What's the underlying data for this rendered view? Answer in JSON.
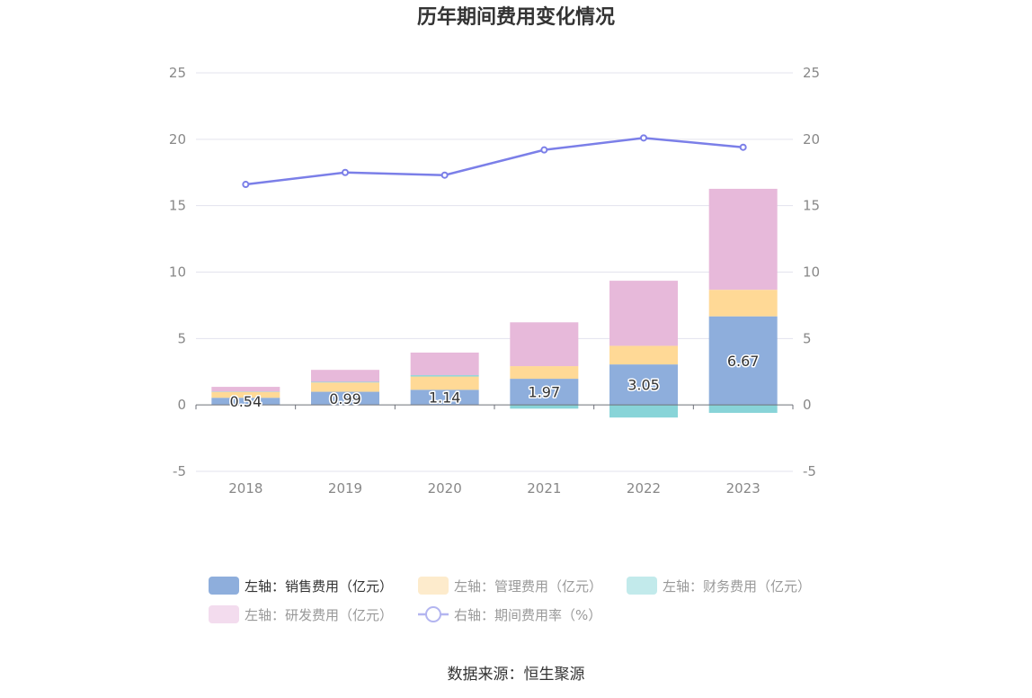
{
  "chart_data": {
    "type": "bar",
    "title": "历年期间费用变化情况",
    "categories": [
      "2018",
      "2019",
      "2020",
      "2021",
      "2022",
      "2023"
    ],
    "left_axis": {
      "ylim": [
        -5,
        25
      ],
      "ticks": [
        "25",
        "20",
        "15",
        "10",
        "5",
        "0",
        "-5"
      ]
    },
    "right_axis": {
      "ylim": [
        -5,
        25
      ],
      "ticks": [
        "25",
        "20",
        "15",
        "10",
        "5",
        "0",
        "-5"
      ]
    },
    "series": [
      {
        "name": "左轴：销售费用（亿元）",
        "type": "stacked-bar",
        "axis": "left",
        "color": "#8eaedc",
        "values": [
          0.54,
          0.99,
          1.14,
          1.97,
          3.05,
          6.67
        ],
        "labels": [
          "0.54",
          "0.99",
          "1.14",
          "1.97",
          "3.05",
          "6.67"
        ]
      },
      {
        "name": "左轴：管理费用（亿元）",
        "type": "stacked-bar",
        "axis": "left",
        "color": "#ffd996",
        "values": [
          0.45,
          0.7,
          1.0,
          0.95,
          1.4,
          2.0
        ]
      },
      {
        "name": "左轴：财务费用（亿元）",
        "type": "stacked-bar",
        "axis": "left",
        "color": "#88d4d8",
        "values": [
          0.02,
          0.05,
          0.1,
          -0.28,
          -0.95,
          -0.6
        ]
      },
      {
        "name": "左轴：研发费用（亿元）",
        "type": "stacked-bar",
        "axis": "left",
        "color": "#e7b9da",
        "values": [
          0.35,
          0.9,
          1.7,
          3.3,
          4.9,
          7.6
        ]
      },
      {
        "name": "右轴：期间费用率（%）",
        "type": "line",
        "axis": "right",
        "color": "#7b7fe8",
        "values": [
          16.6,
          17.5,
          17.3,
          19.2,
          20.1,
          19.4
        ]
      }
    ],
    "grid": true,
    "legend_position": "bottom"
  },
  "legend": [
    {
      "label": "左轴：销售费用（亿元）",
      "color": "#8eaedc",
      "kind": "bar",
      "active": true
    },
    {
      "label": "左轴：管理费用（亿元）",
      "color": "#fdebcc",
      "kind": "bar",
      "active": false
    },
    {
      "label": "左轴：财务费用（亿元）",
      "color": "#c2eaeb",
      "kind": "bar",
      "active": false
    },
    {
      "label": "左轴：研发费用（亿元）",
      "color": "#f3dcee",
      "kind": "bar",
      "active": false
    },
    {
      "label": "右轴：期间费用率（%）",
      "color": "#b3b5f0",
      "kind": "line",
      "active": false
    }
  ],
  "source": "数据来源：恒生聚源"
}
